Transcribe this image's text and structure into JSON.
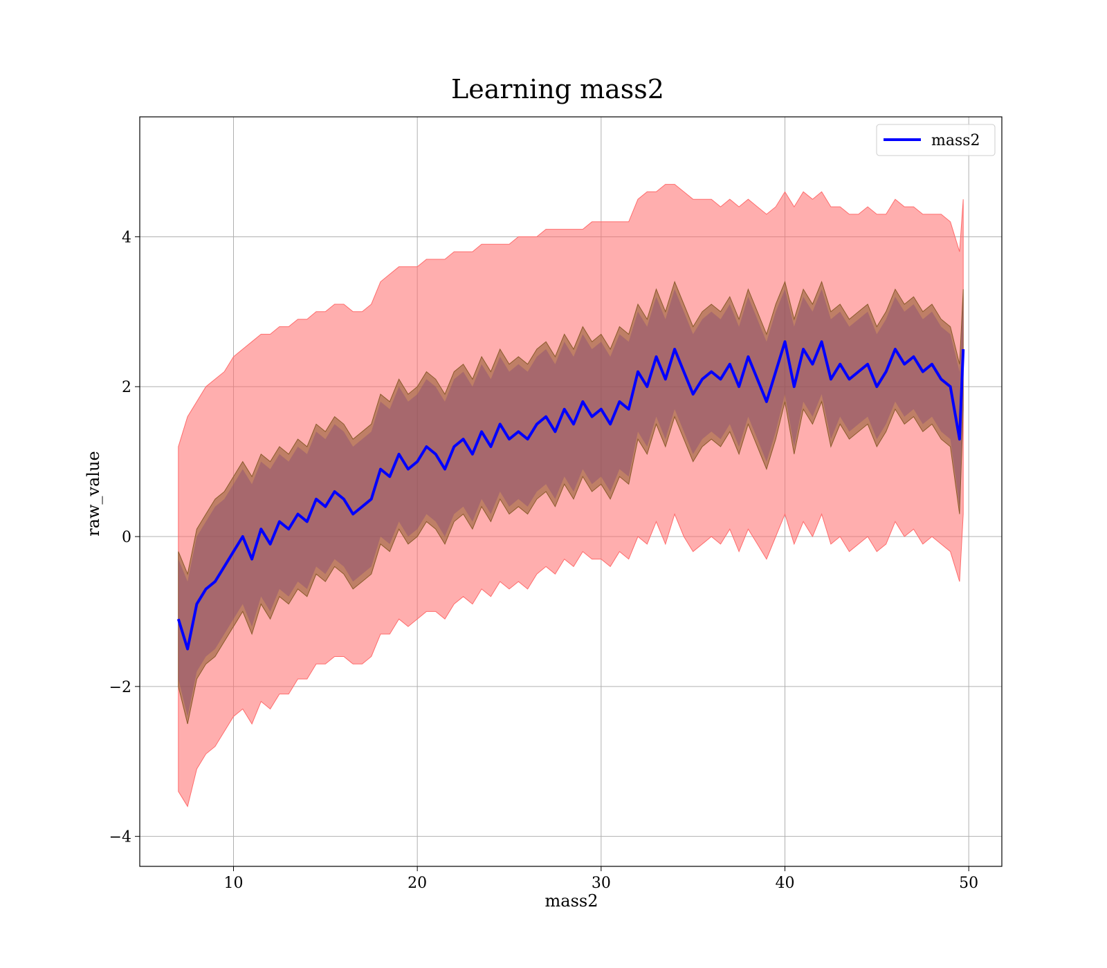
{
  "chart_data": {
    "type": "line",
    "title": "Learning mass2",
    "xlabel": "mass2",
    "ylabel": "raw_value",
    "xlim": [
      4.9,
      51.8
    ],
    "ylim": [
      -4.4,
      5.6
    ],
    "xticks": [
      10,
      20,
      30,
      40,
      50
    ],
    "yticks": [
      -4,
      -2,
      0,
      2,
      4
    ],
    "ytick_labels": [
      "−4",
      "−2",
      "0",
      "2",
      "4"
    ],
    "grid": true,
    "legend": {
      "position": "top-right",
      "entries": [
        "mass2"
      ]
    },
    "colors": {
      "line": "#0000ff",
      "outer_band": "#ff6b6b",
      "inner_band_a": "#8b5a2b",
      "inner_band_b": "#7b3f7b"
    },
    "series": [
      {
        "name": "mass2",
        "x": [
          7.0,
          7.5,
          8.0,
          8.5,
          9.0,
          9.5,
          10.0,
          10.5,
          11.0,
          11.5,
          12.0,
          12.5,
          13.0,
          13.5,
          14.0,
          14.5,
          15.0,
          15.5,
          16.0,
          16.5,
          17.0,
          17.5,
          18.0,
          18.5,
          19.0,
          19.5,
          20.0,
          20.5,
          21.0,
          21.5,
          22.0,
          22.5,
          23.0,
          23.5,
          24.0,
          24.5,
          25.0,
          25.5,
          26.0,
          26.5,
          27.0,
          27.5,
          28.0,
          28.5,
          29.0,
          29.5,
          30.0,
          30.5,
          31.0,
          31.5,
          32.0,
          32.5,
          33.0,
          33.5,
          34.0,
          34.5,
          35.0,
          35.5,
          36.0,
          36.5,
          37.0,
          37.5,
          38.0,
          38.5,
          39.0,
          39.5,
          40.0,
          40.5,
          41.0,
          41.5,
          42.0,
          42.5,
          43.0,
          43.5,
          44.0,
          44.5,
          45.0,
          45.5,
          46.0,
          46.5,
          47.0,
          47.5,
          48.0,
          48.5,
          49.0,
          49.5,
          49.7
        ],
        "y": [
          -1.1,
          -1.5,
          -0.9,
          -0.7,
          -0.6,
          -0.4,
          -0.2,
          0.0,
          -0.3,
          0.1,
          -0.1,
          0.2,
          0.1,
          0.3,
          0.2,
          0.5,
          0.4,
          0.6,
          0.5,
          0.3,
          0.4,
          0.5,
          0.9,
          0.8,
          1.1,
          0.9,
          1.0,
          1.2,
          1.1,
          0.9,
          1.2,
          1.3,
          1.1,
          1.4,
          1.2,
          1.5,
          1.3,
          1.4,
          1.3,
          1.5,
          1.6,
          1.4,
          1.7,
          1.5,
          1.8,
          1.6,
          1.7,
          1.5,
          1.8,
          1.7,
          2.2,
          2.0,
          2.4,
          2.1,
          2.5,
          2.2,
          1.9,
          2.1,
          2.2,
          2.1,
          2.3,
          2.0,
          2.4,
          2.1,
          1.8,
          2.2,
          2.6,
          2.0,
          2.5,
          2.3,
          2.6,
          2.1,
          2.3,
          2.1,
          2.2,
          2.3,
          2.0,
          2.2,
          2.5,
          2.3,
          2.4,
          2.2,
          2.3,
          2.1,
          2.0,
          1.3,
          2.5
        ]
      }
    ],
    "bands": {
      "outer_upper": [
        1.2,
        1.6,
        1.8,
        2.0,
        2.1,
        2.2,
        2.4,
        2.5,
        2.6,
        2.7,
        2.7,
        2.8,
        2.8,
        2.9,
        2.9,
        3.0,
        3.0,
        3.1,
        3.1,
        3.0,
        3.0,
        3.1,
        3.4,
        3.5,
        3.6,
        3.6,
        3.6,
        3.7,
        3.7,
        3.7,
        3.8,
        3.8,
        3.8,
        3.9,
        3.9,
        3.9,
        3.9,
        4.0,
        4.0,
        4.0,
        4.1,
        4.1,
        4.1,
        4.1,
        4.1,
        4.2,
        4.2,
        4.2,
        4.2,
        4.2,
        4.5,
        4.6,
        4.6,
        4.7,
        4.7,
        4.6,
        4.5,
        4.5,
        4.5,
        4.4,
        4.5,
        4.4,
        4.5,
        4.4,
        4.3,
        4.4,
        4.6,
        4.4,
        4.6,
        4.5,
        4.6,
        4.4,
        4.4,
        4.3,
        4.3,
        4.4,
        4.3,
        4.3,
        4.5,
        4.4,
        4.4,
        4.3,
        4.3,
        4.3,
        4.2,
        3.8,
        4.5
      ],
      "outer_lower": [
        -3.4,
        -3.6,
        -3.1,
        -2.9,
        -2.8,
        -2.6,
        -2.4,
        -2.3,
        -2.5,
        -2.2,
        -2.3,
        -2.1,
        -2.1,
        -1.9,
        -1.9,
        -1.7,
        -1.7,
        -1.6,
        -1.6,
        -1.7,
        -1.7,
        -1.6,
        -1.3,
        -1.3,
        -1.1,
        -1.2,
        -1.1,
        -1.0,
        -1.0,
        -1.1,
        -0.9,
        -0.8,
        -0.9,
        -0.7,
        -0.8,
        -0.6,
        -0.7,
        -0.6,
        -0.7,
        -0.5,
        -0.4,
        -0.5,
        -0.3,
        -0.4,
        -0.2,
        -0.3,
        -0.3,
        -0.4,
        -0.2,
        -0.3,
        0.0,
        -0.1,
        0.2,
        -0.1,
        0.3,
        0.0,
        -0.2,
        -0.1,
        0.0,
        -0.1,
        0.1,
        -0.2,
        0.1,
        -0.1,
        -0.3,
        0.0,
        0.3,
        -0.1,
        0.2,
        0.0,
        0.3,
        -0.1,
        0.0,
        -0.2,
        -0.1,
        0.0,
        -0.2,
        -0.1,
        0.2,
        0.0,
        0.1,
        -0.1,
        0.0,
        -0.1,
        -0.2,
        -0.6,
        0.3
      ],
      "inner_upper": [
        -0.2,
        -0.5,
        0.1,
        0.3,
        0.5,
        0.6,
        0.8,
        1.0,
        0.8,
        1.1,
        1.0,
        1.2,
        1.1,
        1.3,
        1.2,
        1.5,
        1.4,
        1.6,
        1.5,
        1.3,
        1.4,
        1.5,
        1.9,
        1.8,
        2.1,
        1.9,
        2.0,
        2.2,
        2.1,
        1.9,
        2.2,
        2.3,
        2.1,
        2.4,
        2.2,
        2.5,
        2.3,
        2.4,
        2.3,
        2.5,
        2.6,
        2.4,
        2.7,
        2.5,
        2.8,
        2.6,
        2.7,
        2.5,
        2.8,
        2.7,
        3.1,
        2.9,
        3.3,
        3.0,
        3.4,
        3.1,
        2.8,
        3.0,
        3.1,
        3.0,
        3.2,
        2.9,
        3.3,
        3.0,
        2.7,
        3.1,
        3.4,
        2.9,
        3.3,
        3.1,
        3.4,
        3.0,
        3.1,
        2.9,
        3.0,
        3.1,
        2.8,
        3.0,
        3.3,
        3.1,
        3.2,
        3.0,
        3.1,
        2.9,
        2.8,
        2.3,
        3.3
      ],
      "inner_lower": [
        -2.0,
        -2.5,
        -1.9,
        -1.7,
        -1.6,
        -1.4,
        -1.2,
        -1.0,
        -1.3,
        -0.9,
        -1.1,
        -0.8,
        -0.9,
        -0.7,
        -0.8,
        -0.5,
        -0.6,
        -0.4,
        -0.5,
        -0.7,
        -0.6,
        -0.5,
        -0.1,
        -0.2,
        0.1,
        -0.1,
        0.0,
        0.2,
        0.1,
        -0.1,
        0.2,
        0.3,
        0.1,
        0.4,
        0.2,
        0.5,
        0.3,
        0.4,
        0.3,
        0.5,
        0.6,
        0.4,
        0.7,
        0.5,
        0.8,
        0.6,
        0.7,
        0.5,
        0.8,
        0.7,
        1.3,
        1.1,
        1.5,
        1.2,
        1.6,
        1.3,
        1.0,
        1.2,
        1.3,
        1.2,
        1.4,
        1.1,
        1.5,
        1.2,
        0.9,
        1.3,
        1.8,
        1.1,
        1.7,
        1.5,
        1.8,
        1.2,
        1.5,
        1.3,
        1.4,
        1.5,
        1.2,
        1.4,
        1.7,
        1.5,
        1.6,
        1.4,
        1.5,
        1.3,
        1.2,
        0.3,
        1.7
      ]
    }
  }
}
